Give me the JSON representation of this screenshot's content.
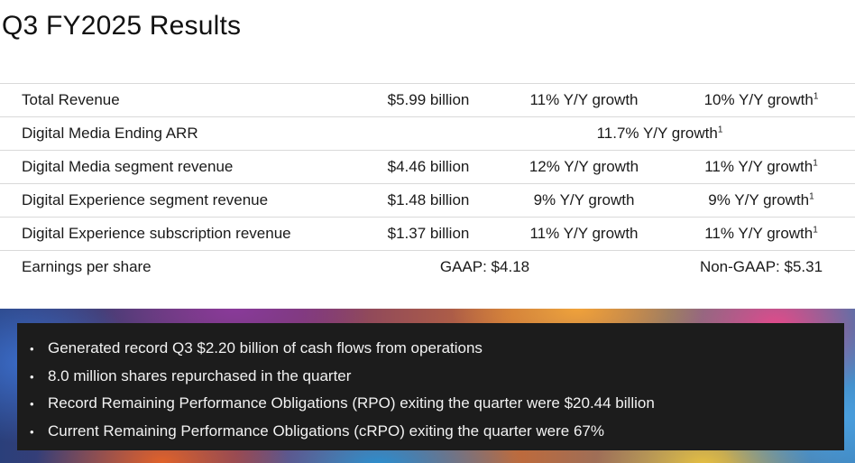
{
  "title": "Q3 FY2025 Results",
  "rows": [
    {
      "label": "Total Revenue",
      "value": "$5.99 billion",
      "growth": "11% Y/Y growth",
      "growth_cc": "10% Y/Y growth",
      "footnote": "1"
    },
    {
      "label": "Digital Media Ending ARR",
      "growth_span": "11.7% Y/Y growth",
      "footnote": "1"
    },
    {
      "label": "Digital Media segment revenue",
      "value": "$4.46 billion",
      "growth": "12% Y/Y growth",
      "growth_cc": "11% Y/Y growth",
      "footnote": "1"
    },
    {
      "label": "Digital Experience segment revenue",
      "value": "$1.48 billion",
      "growth": "9% Y/Y growth",
      "growth_cc": "9% Y/Y growth",
      "footnote": "1"
    },
    {
      "label": "Digital Experience subscription revenue",
      "value": "$1.37 billion",
      "growth": "11% Y/Y growth",
      "growth_cc": "11% Y/Y growth",
      "footnote": "1"
    },
    {
      "label": "Earnings per share",
      "gaap": "GAAP: $4.18",
      "non_gaap": "Non-GAAP: $5.31"
    }
  ],
  "highlights": {
    "bullet": "•",
    "items": [
      "Generated record Q3 $2.20 billion of cash flows from operations",
      "8.0 million shares repurchased in the quarter",
      "Record Remaining Performance Obligations (RPO) exiting the quarter were $20.44 billion",
      "Current Remaining Performance Obligations (cRPO) exiting the quarter were 67%"
    ]
  }
}
